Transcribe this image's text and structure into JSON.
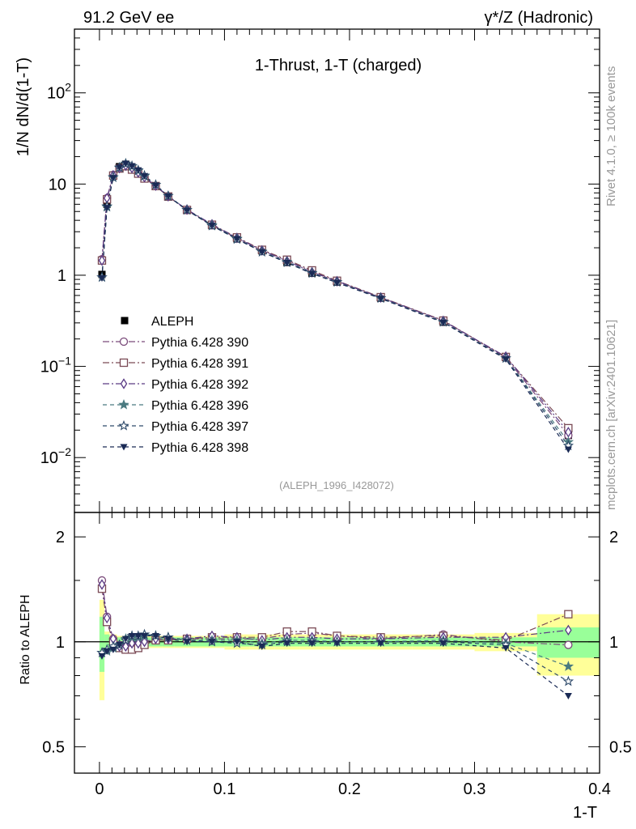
{
  "header": {
    "left": "91.2 GeV ee",
    "right": "γ*/Z (Hadronic)"
  },
  "side": {
    "rivet": "Rivet 4.1.0, ≥ 100k events",
    "mcplots": "mcplots.cern.ch [arXiv:2401.10621]"
  },
  "chart_data": [
    {
      "type": "line",
      "title": "1-Thrust, 1-T (charged)",
      "ylabel": "1/N  dN/d(1-T)",
      "analysis_label": "(ALEPH_1996_I428072)",
      "yscale": "log",
      "ylim": [
        0.0025,
        500
      ],
      "xlim": [
        -0.02,
        0.4
      ],
      "y_ticks": [
        {
          "v": 0.01,
          "base": "10",
          "exp": "−2"
        },
        {
          "v": 0.1,
          "base": "10",
          "exp": "−1"
        },
        {
          "v": 1,
          "base": "1",
          "exp": ""
        },
        {
          "v": 10,
          "base": "10",
          "exp": ""
        },
        {
          "v": 100,
          "base": "10",
          "exp": "2"
        }
      ],
      "data": {
        "name": "ALEPH",
        "x": [
          0.002,
          0.006,
          0.011,
          0.016,
          0.021,
          0.026,
          0.031,
          0.036,
          0.045,
          0.055,
          0.07,
          0.09,
          0.11,
          0.13,
          0.15,
          0.17,
          0.19,
          0.225,
          0.275,
          0.325,
          0.375
        ],
        "y": [
          1.02,
          6.0,
          12.3,
          15.5,
          16.5,
          15.2,
          13.6,
          11.8,
          9.4,
          7.2,
          5.15,
          3.5,
          2.5,
          1.85,
          1.38,
          1.05,
          0.84,
          0.56,
          0.305,
          0.125,
          0.0175
        ]
      },
      "series": [
        {
          "name": "Pythia 6.428 390",
          "marker": "circle-open",
          "color": "#7a4a7a",
          "dash": "8,3,2,3",
          "y": [
            1.5,
            7.0,
            12.6,
            15.0,
            15.6,
            14.6,
            13.2,
            11.8,
            9.5,
            7.3,
            5.2,
            3.55,
            2.55,
            1.88,
            1.45,
            1.1,
            0.86,
            0.57,
            0.32,
            0.125,
            0.0175
          ]
        },
        {
          "name": "Pythia 6.428 391",
          "marker": "square-open",
          "color": "#7a4a55",
          "dash": "8,3,2,3",
          "y": [
            1.45,
            6.8,
            12.4,
            14.8,
            15.7,
            14.4,
            13.0,
            11.5,
            9.5,
            7.3,
            5.2,
            3.58,
            2.6,
            1.9,
            1.48,
            1.13,
            0.87,
            0.575,
            0.318,
            0.127,
            0.021
          ]
        },
        {
          "name": "Pythia 6.428 392",
          "marker": "diamond-open",
          "color": "#5a3a85",
          "dash": "8,3,2,3",
          "y": [
            1.45,
            7.0,
            12.5,
            15.0,
            16.0,
            15.0,
            13.4,
            11.9,
            9.6,
            7.35,
            5.25,
            3.62,
            2.57,
            1.87,
            1.43,
            1.08,
            0.86,
            0.57,
            0.315,
            0.128,
            0.019
          ]
        },
        {
          "name": "Pythia 6.428 396",
          "marker": "star-filled",
          "color": "#4a7a80",
          "dash": "5,4",
          "y": [
            0.95,
            5.6,
            11.8,
            15.2,
            16.8,
            15.6,
            14.0,
            12.2,
            9.8,
            7.4,
            5.2,
            3.55,
            2.52,
            1.82,
            1.4,
            1.06,
            0.84,
            0.56,
            0.308,
            0.123,
            0.0148
          ]
        },
        {
          "name": "Pythia 6.428 397",
          "marker": "star-open",
          "color": "#2e4a6a",
          "dash": "5,4",
          "y": [
            0.95,
            5.7,
            11.9,
            15.1,
            16.7,
            15.8,
            14.2,
            12.4,
            9.8,
            7.4,
            5.2,
            3.48,
            2.48,
            1.8,
            1.38,
            1.05,
            0.84,
            0.56,
            0.306,
            0.123,
            0.0135
          ]
        },
        {
          "name": "Pythia 6.428 398",
          "marker": "triangle-down",
          "color": "#1a2a55",
          "dash": "5,4",
          "y": [
            0.93,
            5.5,
            11.7,
            15.2,
            16.8,
            15.8,
            14.2,
            12.3,
            9.7,
            7.35,
            5.15,
            3.5,
            2.5,
            1.8,
            1.37,
            1.04,
            0.83,
            0.555,
            0.303,
            0.12,
            0.0123
          ]
        }
      ]
    },
    {
      "type": "line",
      "ylabel": "Ratio to ALEPH",
      "xlabel": "1-T",
      "yscale": "log",
      "ylim": [
        0.42,
        2.35
      ],
      "y_ticks": [
        {
          "v": 0.5,
          "label": "0.5"
        },
        {
          "v": 1,
          "label": "1"
        },
        {
          "v": 2,
          "label": "2"
        }
      ],
      "x_ticks": [
        {
          "v": 0,
          "label": "0"
        },
        {
          "v": 0.1,
          "label": "0.1"
        },
        {
          "v": 0.2,
          "label": "0.2"
        },
        {
          "v": 0.3,
          "label": "0.3"
        },
        {
          "v": 0.4,
          "label": "0.4"
        }
      ],
      "x_edges": [
        0,
        0.004,
        0.008,
        0.014,
        0.018,
        0.024,
        0.028,
        0.034,
        0.038,
        0.05,
        0.06,
        0.08,
        0.1,
        0.12,
        0.14,
        0.16,
        0.18,
        0.2,
        0.25,
        0.3,
        0.35,
        0.4
      ],
      "band_inner": [
        0.18,
        0.05,
        0.03,
        0.03,
        0.03,
        0.03,
        0.03,
        0.03,
        0.03,
        0.03,
        0.03,
        0.03,
        0.03,
        0.03,
        0.03,
        0.03,
        0.03,
        0.03,
        0.03,
        0.03,
        0.1
      ],
      "band_outer": [
        0.32,
        0.07,
        0.05,
        0.04,
        0.04,
        0.04,
        0.04,
        0.04,
        0.04,
        0.04,
        0.04,
        0.04,
        0.05,
        0.05,
        0.05,
        0.05,
        0.05,
        0.05,
        0.05,
        0.06,
        0.2
      ],
      "x": [
        0.002,
        0.006,
        0.011,
        0.016,
        0.021,
        0.026,
        0.031,
        0.036,
        0.045,
        0.055,
        0.07,
        0.09,
        0.11,
        0.13,
        0.15,
        0.17,
        0.19,
        0.225,
        0.275,
        0.325,
        0.375
      ],
      "series": [
        {
          "name": "Pythia 6.428 390",
          "y": [
            1.5,
            1.18,
            1.02,
            0.98,
            0.97,
            0.97,
            0.98,
            1.0,
            1.01,
            1.01,
            1.02,
            1.02,
            1.02,
            1.02,
            1.05,
            1.06,
            1.04,
            1.02,
            1.05,
            1.0,
            0.98
          ]
        },
        {
          "name": "Pythia 6.428 391",
          "y": [
            1.42,
            1.14,
            1.0,
            0.96,
            0.95,
            0.95,
            0.96,
            0.98,
            1.01,
            1.01,
            1.02,
            1.03,
            1.03,
            1.03,
            1.07,
            1.07,
            1.04,
            1.03,
            1.04,
            1.01,
            1.2
          ]
        },
        {
          "name": "Pythia 6.428 392",
          "y": [
            1.46,
            1.17,
            1.02,
            0.97,
            0.97,
            0.99,
            0.99,
            1.0,
            1.02,
            1.02,
            1.02,
            1.04,
            1.03,
            1.01,
            1.03,
            1.03,
            1.02,
            1.02,
            1.03,
            1.03,
            1.08
          ]
        },
        {
          "name": "Pythia 6.428 396",
          "y": [
            0.93,
            0.94,
            0.96,
            0.98,
            1.02,
            1.03,
            1.03,
            1.04,
            1.04,
            1.03,
            1.01,
            1.01,
            1.01,
            0.99,
            1.01,
            1.01,
            1.0,
            1.0,
            1.01,
            0.99,
            0.85
          ]
        },
        {
          "name": "Pythia 6.428 397",
          "y": [
            0.93,
            0.95,
            0.97,
            0.98,
            1.01,
            1.04,
            1.04,
            1.05,
            1.04,
            1.03,
            1.01,
            1.0,
            0.99,
            0.98,
            1.0,
            1.0,
            1.0,
            1.0,
            1.0,
            0.98,
            0.77
          ]
        },
        {
          "name": "Pythia 6.428 398",
          "y": [
            0.91,
            0.94,
            0.95,
            0.98,
            1.02,
            1.04,
            1.04,
            1.04,
            1.04,
            1.02,
            1.0,
            1.0,
            1.0,
            0.97,
            0.99,
            0.99,
            0.99,
            0.99,
            0.99,
            0.96,
            0.7
          ]
        }
      ]
    }
  ]
}
